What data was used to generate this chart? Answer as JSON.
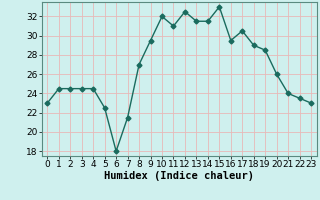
{
  "x": [
    0,
    1,
    2,
    3,
    4,
    5,
    6,
    7,
    8,
    9,
    10,
    11,
    12,
    13,
    14,
    15,
    16,
    17,
    18,
    19,
    20,
    21,
    22,
    23
  ],
  "y": [
    23,
    24.5,
    24.5,
    24.5,
    24.5,
    22.5,
    18,
    21.5,
    27,
    29.5,
    32,
    31,
    32.5,
    31.5,
    31.5,
    33,
    29.5,
    30.5,
    29,
    28.5,
    26,
    24,
    23.5,
    23
  ],
  "line_color": "#1a6b5e",
  "marker": "D",
  "marker_size": 2.5,
  "bg_color": "#cff0ee",
  "grid_color": "#e8b8b8",
  "xlabel": "Humidex (Indice chaleur)",
  "ylabel": "",
  "xlim": [
    -0.5,
    23.5
  ],
  "ylim": [
    17.5,
    33.5
  ],
  "yticks": [
    18,
    20,
    22,
    24,
    26,
    28,
    30,
    32
  ],
  "xticks": [
    0,
    1,
    2,
    3,
    4,
    5,
    6,
    7,
    8,
    9,
    10,
    11,
    12,
    13,
    14,
    15,
    16,
    17,
    18,
    19,
    20,
    21,
    22,
    23
  ],
  "title_fontsize": 9,
  "xlabel_fontsize": 7.5,
  "tick_fontsize": 6.5,
  "linewidth": 1.0
}
